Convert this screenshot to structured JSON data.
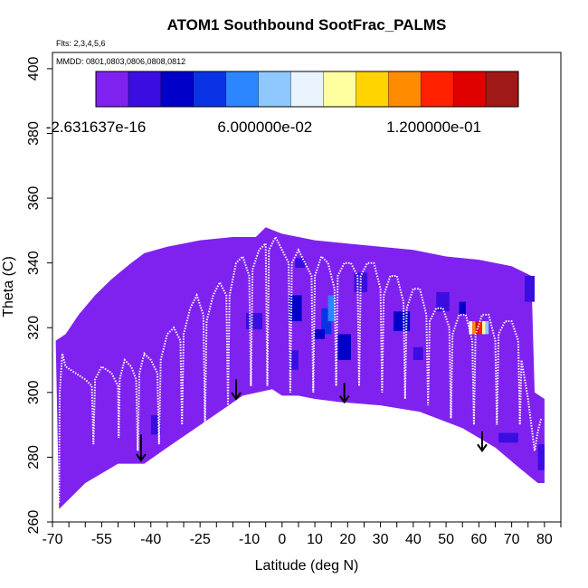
{
  "chart_data": {
    "type": "heatmap",
    "title": "ATOM1 Southbound SootFrac_PALMS",
    "flights_note": "Flts: 2,3,4,5,6",
    "dates_note": "MMDD: 0801,0803,0806,0808,0812",
    "xlabel": "Latitude (deg N)",
    "ylabel": "Theta (C)",
    "xlim": [
      -70,
      85
    ],
    "ylim": [
      260,
      405
    ],
    "x_ticks": [
      -70,
      -55,
      -40,
      -25,
      -10,
      0,
      10,
      20,
      30,
      40,
      50,
      60,
      70,
      80
    ],
    "x_tick_labels": [
      "-70",
      "-55",
      "-40",
      "-25",
      "-10",
      "0",
      "10",
      "20",
      "30",
      "40",
      "50",
      "60",
      "70",
      "80"
    ],
    "x_minor_step": 5,
    "y_ticks": [
      260,
      280,
      300,
      320,
      340,
      360,
      380,
      400
    ],
    "y_tick_labels": [
      "260",
      "280",
      "300",
      "320",
      "340",
      "360",
      "380",
      "400"
    ],
    "colorbar": {
      "min": -2.631637e-16,
      "max": 0.15,
      "ticks": [
        -2.631637e-16,
        0.06,
        0.12
      ],
      "tick_labels": [
        "-2.631637e-16",
        "6.000000e-02",
        "1.200000e-01"
      ],
      "colors": [
        "#7F22F0",
        "#3A0EE0",
        "#0000C8",
        "#0A33E6",
        "#2C86FF",
        "#8FC8FF",
        "#EAF4FF",
        "#FFFFA0",
        "#FFD400",
        "#FF8C00",
        "#FF2000",
        "#E00000",
        "#A01818"
      ]
    },
    "background_value": 0.0,
    "surface_boundary": [
      {
        "lat": -68,
        "theta": 264
      },
      {
        "lat": -60,
        "theta": 272
      },
      {
        "lat": -50,
        "theta": 278
      },
      {
        "lat": -42,
        "theta": 278
      },
      {
        "lat": -35,
        "theta": 283
      },
      {
        "lat": -22,
        "theta": 292
      },
      {
        "lat": -12,
        "theta": 299
      },
      {
        "lat": -3,
        "theta": 301
      },
      {
        "lat": 0,
        "theta": 299
      },
      {
        "lat": 5,
        "theta": 299
      },
      {
        "lat": 10,
        "theta": 298
      },
      {
        "lat": 18,
        "theta": 297
      },
      {
        "lat": 30,
        "theta": 296
      },
      {
        "lat": 42,
        "theta": 294
      },
      {
        "lat": 55,
        "theta": 289
      },
      {
        "lat": 65,
        "theta": 283
      },
      {
        "lat": 72,
        "theta": 277
      },
      {
        "lat": 78,
        "theta": 272
      }
    ],
    "top_boundary": [
      {
        "lat": -69,
        "theta": 316
      },
      {
        "lat": -66,
        "theta": 318
      },
      {
        "lat": -62,
        "theta": 324
      },
      {
        "lat": -57,
        "theta": 330
      },
      {
        "lat": -52,
        "theta": 335
      },
      {
        "lat": -46,
        "theta": 340
      },
      {
        "lat": -42,
        "theta": 343
      },
      {
        "lat": -35,
        "theta": 345
      },
      {
        "lat": -25,
        "theta": 347
      },
      {
        "lat": -15,
        "theta": 348
      },
      {
        "lat": -8,
        "theta": 348
      },
      {
        "lat": -5,
        "theta": 351
      },
      {
        "lat": 0,
        "theta": 349
      },
      {
        "lat": 10,
        "theta": 347
      },
      {
        "lat": 20,
        "theta": 346
      },
      {
        "lat": 30,
        "theta": 345
      },
      {
        "lat": 40,
        "theta": 344
      },
      {
        "lat": 50,
        "theta": 342
      },
      {
        "lat": 60,
        "theta": 341
      },
      {
        "lat": 70,
        "theta": 339
      },
      {
        "lat": 76,
        "theta": 336
      },
      {
        "lat": 77,
        "theta": 300
      },
      {
        "lat": 80,
        "theta": 298
      },
      {
        "lat": 80,
        "theta": 272
      }
    ],
    "cells": [
      {
        "lat": -11,
        "theta": 322,
        "w": 5,
        "h": 5,
        "value": 0.02
      },
      {
        "lat": 4,
        "theta": 340,
        "w": 3,
        "h": 3,
        "value": 0.02
      },
      {
        "lat": 2,
        "theta": 326,
        "w": 4,
        "h": 8,
        "value": 0.025
      },
      {
        "lat": 2,
        "theta": 310,
        "w": 3,
        "h": 6,
        "value": 0.02
      },
      {
        "lat": 12,
        "theta": 322,
        "w": 3,
        "h": 8,
        "value": 0.04
      },
      {
        "lat": 14,
        "theta": 326,
        "w": 2,
        "h": 8,
        "value": 0.05
      },
      {
        "lat": 10,
        "theta": 318,
        "w": 3,
        "h": 3,
        "value": 0.03
      },
      {
        "lat": 17,
        "theta": 314,
        "w": 4,
        "h": 8,
        "value": 0.025
      },
      {
        "lat": 22,
        "theta": 334,
        "w": 4,
        "h": 6,
        "value": 0.02
      },
      {
        "lat": 34,
        "theta": 322,
        "w": 5,
        "h": 6,
        "value": 0.025
      },
      {
        "lat": 40,
        "theta": 312,
        "w": 3,
        "h": 4,
        "value": 0.02
      },
      {
        "lat": 47,
        "theta": 328,
        "w": 4,
        "h": 6,
        "value": 0.02
      },
      {
        "lat": 54,
        "theta": 326,
        "w": 2,
        "h": 4,
        "value": 0.025
      },
      {
        "lat": 57,
        "theta": 320,
        "w": 1,
        "h": 4,
        "value": 0.07
      },
      {
        "lat": 58,
        "theta": 320,
        "w": 1,
        "h": 4,
        "value": 0.11
      },
      {
        "lat": 59,
        "theta": 320,
        "w": 1,
        "h": 4,
        "value": 0.135
      },
      {
        "lat": 60,
        "theta": 320,
        "w": 1,
        "h": 4,
        "value": 0.12
      },
      {
        "lat": 61,
        "theta": 320,
        "w": 1,
        "h": 4,
        "value": 0.085
      },
      {
        "lat": 62,
        "theta": 320,
        "w": 1,
        "h": 4,
        "value": 0.06
      },
      {
        "lat": 74,
        "theta": 332,
        "w": 3,
        "h": 8,
        "value": 0.02
      },
      {
        "lat": 66,
        "theta": 286,
        "w": 6,
        "h": 3,
        "value": 0.02
      },
      {
        "lat": 78,
        "theta": 280,
        "w": 2,
        "h": 8,
        "value": 0.02
      },
      {
        "lat": -40,
        "theta": 290,
        "w": 3,
        "h": 6,
        "value": 0.02
      }
    ],
    "flight_tracks": [
      {
        "lat": [
          -68,
          -67.8,
          -67,
          -66,
          -63,
          -60,
          -58,
          -57.5,
          -57,
          -55,
          -52,
          -50,
          -49.8,
          -49.5,
          -48,
          -46,
          -44.5,
          -44,
          -43.5,
          -42,
          -40,
          -38,
          -37.5,
          -37,
          -35,
          -33,
          -31,
          -30.5,
          -30,
          -28,
          -26,
          -24,
          -23.5,
          -23,
          -21,
          -19,
          -17,
          -16.5,
          -16,
          -14,
          -12,
          -10,
          -9.5,
          -9,
          -7,
          -5,
          -4.5,
          -4,
          -2,
          0,
          2,
          2.5,
          3,
          5,
          7,
          9,
          9.5,
          10,
          12,
          14,
          16,
          16.5,
          17,
          19,
          21,
          23,
          23.5,
          24,
          26,
          28,
          30,
          30.5,
          31,
          33,
          35,
          37,
          37.5,
          38,
          40,
          42,
          44,
          44.5,
          45,
          47,
          49,
          51,
          51.5,
          52,
          54,
          56,
          58,
          58.5,
          59,
          61,
          63,
          65,
          65.5,
          66,
          68,
          70,
          72,
          72.5,
          73,
          75,
          77,
          78,
          79
        ],
        "theta": [
          266,
          300,
          312,
          308,
          306,
          304,
          302,
          284,
          304,
          308,
          306,
          302,
          286,
          304,
          310,
          308,
          304,
          282,
          306,
          312,
          310,
          306,
          284,
          310,
          318,
          320,
          316,
          290,
          318,
          326,
          330,
          324,
          290,
          322,
          330,
          334,
          330,
          296,
          330,
          340,
          342,
          336,
          302,
          338,
          344,
          346,
          302,
          344,
          348,
          344,
          340,
          300,
          340,
          344,
          340,
          336,
          300,
          336,
          342,
          340,
          332,
          302,
          336,
          340,
          340,
          336,
          302,
          336,
          340,
          340,
          332,
          300,
          330,
          336,
          336,
          328,
          298,
          326,
          332,
          332,
          324,
          296,
          322,
          326,
          326,
          320,
          292,
          318,
          324,
          324,
          316,
          290,
          318,
          324,
          324,
          316,
          290,
          318,
          322,
          322,
          316,
          290,
          310,
          298,
          282,
          288,
          292
        ]
      }
    ],
    "arrows": [
      {
        "lat": -43,
        "theta_top": 287,
        "theta_tip": 279
      },
      {
        "lat": -14,
        "theta_top": 304,
        "theta_tip": 298
      },
      {
        "lat": 19,
        "theta_top": 303,
        "theta_tip": 297
      },
      {
        "lat": 61,
        "theta_top": 288,
        "theta_tip": 282
      }
    ]
  }
}
